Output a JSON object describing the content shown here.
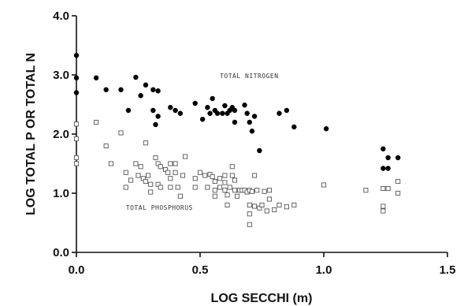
{
  "chart_data": {
    "type": "scatter",
    "xlabel": "LOG SECCHI (m)",
    "ylabel": "LOG TOTAL  P  OR TOTAL  N",
    "xlim": [
      0,
      1.5
    ],
    "ylim": [
      0,
      4
    ],
    "xticks": [
      "0.0",
      "0.5",
      "1.0",
      "1.5"
    ],
    "yticks": [
      "0.0",
      "1.0",
      "2.0",
      "3.0",
      "4.0"
    ],
    "grid": false,
    "legend": "none",
    "annotations": [
      {
        "text": "TOTAL NITROGEN",
        "x": 0.58,
        "y": 2.95
      },
      {
        "text": "TOTAL PHOSPHORUS",
        "x": 0.2,
        "y": 0.72
      }
    ],
    "series": [
      {
        "marker": "filled-circle",
        "color": "#000000",
        "points": [
          [
            0.0,
            3.33
          ],
          [
            0.0,
            2.95
          ],
          [
            0.0,
            2.7
          ],
          [
            0.08,
            2.95
          ],
          [
            0.12,
            2.75
          ],
          [
            0.18,
            2.75
          ],
          [
            0.21,
            2.4
          ],
          [
            0.24,
            2.96
          ],
          [
            0.26,
            2.65
          ],
          [
            0.28,
            2.83
          ],
          [
            0.31,
            2.75
          ],
          [
            0.31,
            2.4
          ],
          [
            0.32,
            2.16
          ],
          [
            0.33,
            2.73
          ],
          [
            0.33,
            2.3
          ],
          [
            0.38,
            2.45
          ],
          [
            0.4,
            2.4
          ],
          [
            0.42,
            2.35
          ],
          [
            0.48,
            2.52
          ],
          [
            0.51,
            2.25
          ],
          [
            0.53,
            2.45
          ],
          [
            0.54,
            2.35
          ],
          [
            0.55,
            2.6
          ],
          [
            0.56,
            2.4
          ],
          [
            0.57,
            2.35
          ],
          [
            0.59,
            2.35
          ],
          [
            0.6,
            2.48
          ],
          [
            0.61,
            2.35
          ],
          [
            0.62,
            2.4
          ],
          [
            0.63,
            2.45
          ],
          [
            0.64,
            2.4
          ],
          [
            0.64,
            2.2
          ],
          [
            0.68,
            2.49
          ],
          [
            0.69,
            2.35
          ],
          [
            0.7,
            2.2
          ],
          [
            0.71,
            2.05
          ],
          [
            0.72,
            2.3
          ],
          [
            0.74,
            1.72
          ],
          [
            0.82,
            2.35
          ],
          [
            0.85,
            2.4
          ],
          [
            0.88,
            2.12
          ],
          [
            1.01,
            2.09
          ],
          [
            1.24,
            1.75
          ],
          [
            1.24,
            1.42
          ],
          [
            1.26,
            1.6
          ],
          [
            1.26,
            1.42
          ],
          [
            1.3,
            1.6
          ]
        ]
      },
      {
        "marker": "open-square",
        "color": "#555555",
        "points": [
          [
            0.0,
            2.17
          ],
          [
            0.0,
            1.92
          ],
          [
            0.0,
            1.6
          ],
          [
            0.0,
            1.5
          ],
          [
            0.08,
            2.2
          ],
          [
            0.12,
            1.8
          ],
          [
            0.14,
            1.5
          ],
          [
            0.18,
            2.02
          ],
          [
            0.2,
            1.35
          ],
          [
            0.2,
            1.1
          ],
          [
            0.22,
            1.22
          ],
          [
            0.24,
            1.5
          ],
          [
            0.25,
            1.3
          ],
          [
            0.26,
            1.45
          ],
          [
            0.27,
            1.25
          ],
          [
            0.28,
            1.85
          ],
          [
            0.28,
            1.2
          ],
          [
            0.29,
            1.3
          ],
          [
            0.3,
            1.15
          ],
          [
            0.3,
            1.02
          ],
          [
            0.32,
            1.6
          ],
          [
            0.33,
            1.5
          ],
          [
            0.33,
            1.15
          ],
          [
            0.34,
            1.45
          ],
          [
            0.34,
            1.1
          ],
          [
            0.36,
            1.4
          ],
          [
            0.37,
            1.35
          ],
          [
            0.38,
            1.5
          ],
          [
            0.38,
            1.25
          ],
          [
            0.38,
            1.1
          ],
          [
            0.4,
            1.5
          ],
          [
            0.4,
            1.35
          ],
          [
            0.41,
            1.1
          ],
          [
            0.42,
            0.95
          ],
          [
            0.43,
            1.3
          ],
          [
            0.44,
            1.62
          ],
          [
            0.48,
            1.25
          ],
          [
            0.48,
            1.1
          ],
          [
            0.5,
            1.35
          ],
          [
            0.52,
            1.3
          ],
          [
            0.53,
            1.1
          ],
          [
            0.54,
            1.32
          ],
          [
            0.55,
            1.28
          ],
          [
            0.56,
            1.2
          ],
          [
            0.56,
            1.05
          ],
          [
            0.56,
            0.95
          ],
          [
            0.58,
            1.25
          ],
          [
            0.58,
            1.1
          ],
          [
            0.6,
            1.3
          ],
          [
            0.6,
            1.18
          ],
          [
            0.6,
            1.05
          ],
          [
            0.61,
            0.97
          ],
          [
            0.61,
            0.8
          ],
          [
            0.62,
            1.1
          ],
          [
            0.63,
            1.45
          ],
          [
            0.63,
            1.3
          ],
          [
            0.64,
            1.22
          ],
          [
            0.64,
            1.05
          ],
          [
            0.65,
            0.95
          ],
          [
            0.66,
            1.05
          ],
          [
            0.67,
            1.05
          ],
          [
            0.68,
            1.05
          ],
          [
            0.69,
            1.02
          ],
          [
            0.7,
            1.05
          ],
          [
            0.7,
            0.8
          ],
          [
            0.7,
            0.65
          ],
          [
            0.7,
            0.47
          ],
          [
            0.71,
            1.03
          ],
          [
            0.72,
            1.3
          ],
          [
            0.72,
            0.78
          ],
          [
            0.73,
            1.05
          ],
          [
            0.74,
            0.75
          ],
          [
            0.75,
            0.8
          ],
          [
            0.76,
            1.03
          ],
          [
            0.77,
            0.7
          ],
          [
            0.78,
            1.05
          ],
          [
            0.78,
            0.9
          ],
          [
            0.8,
            0.72
          ],
          [
            0.82,
            0.8
          ],
          [
            0.85,
            0.77
          ],
          [
            0.88,
            0.8
          ],
          [
            1.0,
            1.14
          ],
          [
            1.17,
            1.05
          ],
          [
            1.24,
            1.08
          ],
          [
            1.24,
            0.78
          ],
          [
            1.24,
            0.7
          ],
          [
            1.26,
            1.08
          ],
          [
            1.3,
            1.2
          ],
          [
            1.3,
            1.0
          ]
        ]
      }
    ]
  }
}
